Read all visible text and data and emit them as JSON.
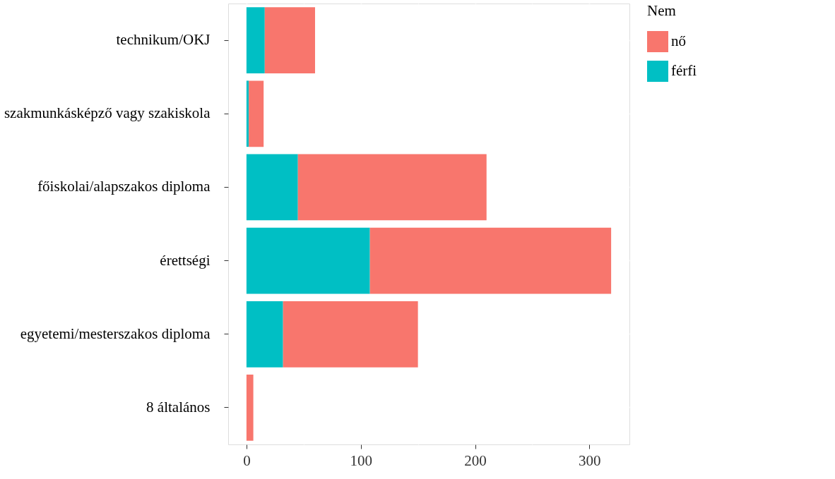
{
  "chart_data": {
    "type": "bar",
    "orientation": "horizontal",
    "stacked": true,
    "categories": [
      "technikum/OKJ",
      "szakmunkásképző vagy szakiskola",
      "főiskolai/alapszakos diploma",
      "érettségi",
      "egyetemi/mesterszakos diploma",
      "8 általános"
    ],
    "series": [
      {
        "name": "férfi",
        "color": "#00bfc4",
        "values": [
          16,
          2,
          45,
          108,
          32,
          0
        ]
      },
      {
        "name": "nő",
        "color": "#f8766d",
        "values": [
          44,
          13,
          165,
          211,
          118,
          6
        ]
      }
    ],
    "legend_title": "Nem",
    "legend": "right",
    "xlim": [
      -16,
      335
    ],
    "xticks": [
      0,
      {
        "value": 50,
        "label": null
      },
      100,
      {
        "value": 150,
        "label": null
      },
      200,
      {
        "value": 250,
        "label": null
      },
      300
    ],
    "grid": true
  }
}
